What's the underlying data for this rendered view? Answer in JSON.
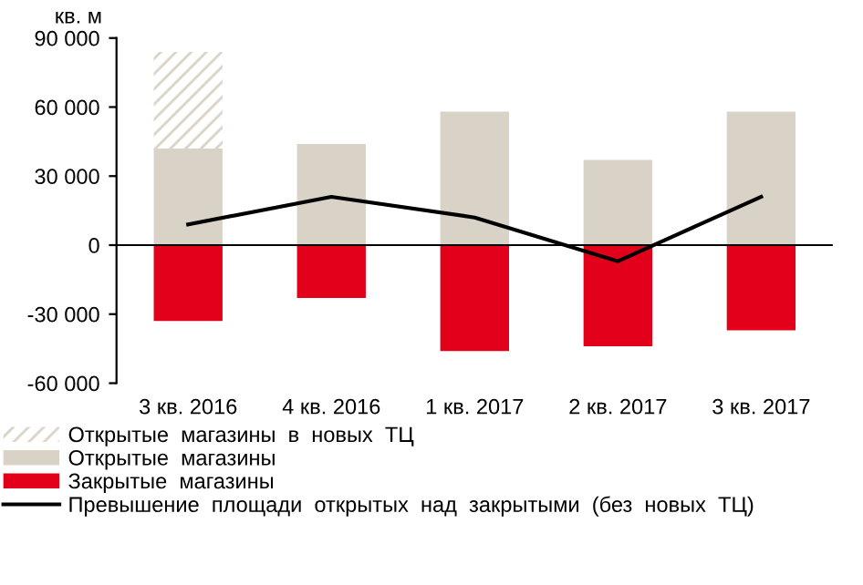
{
  "chart_data": {
    "type": "bar",
    "ylabel": "кв. м",
    "stacked": true,
    "categories": [
      "3 кв. 2016",
      "4 кв. 2016",
      "1 кв. 2017",
      "2 кв. 2017",
      "3 кв. 2017"
    ],
    "series": [
      {
        "name": "Открытые  магазины",
        "color": "#d9d3c7",
        "values": [
          42000,
          44000,
          58000,
          37000,
          58000
        ]
      },
      {
        "name": "Открытые  магазины  в  новых  ТЦ",
        "color": "#d9d3c7",
        "line_style": "dashed",
        "values": [
          42000,
          null,
          null,
          null,
          null
        ]
      },
      {
        "name": "Закрытые  магазины",
        "color": "#e3001b",
        "values": [
          -33000,
          -23000,
          -46000,
          -44000,
          -37000
        ]
      },
      {
        "name": "Превышение  площади  открытых  над  закрытыми  (без  новых  ТЦ)",
        "type": "line",
        "color": "#000000",
        "values": [
          9000,
          21000,
          12000,
          -7000,
          21000
        ]
      }
    ],
    "ylim": [
      -60000,
      90000
    ],
    "yticks": [
      {
        "value": -60000,
        "label": "-60 000"
      },
      {
        "value": -30000,
        "label": "-30 000"
      },
      {
        "value": 0,
        "label": "0"
      },
      {
        "value": 30000,
        "label": "30 000"
      },
      {
        "value": 60000,
        "label": "60 000"
      },
      {
        "value": 90000,
        "label": "90 000"
      }
    ],
    "ref_lines": [
      {
        "axis": "y",
        "value": 0,
        "color": "#000000"
      }
    ],
    "legend": "bottom"
  }
}
